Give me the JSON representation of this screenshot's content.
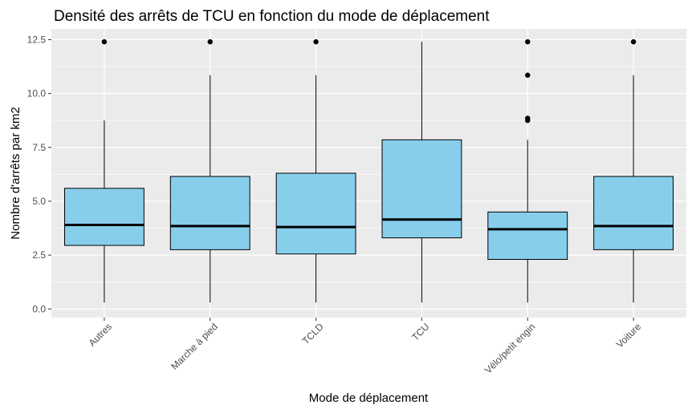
{
  "colors": {
    "panel_background": "#ebebeb",
    "grid_major": "#ffffff",
    "box_fill": "#87ceeb",
    "box_stroke": "#000000",
    "median": "#000000",
    "outlier": "#000000",
    "tick_text": "#4d4d4d"
  },
  "chart_data": {
    "type": "boxplot",
    "title": "Densité des arrêts de TCU en fonction du mode de déplacement",
    "xlabel": "Mode de déplacement",
    "ylabel": "Nombre d'arrêts par km2",
    "ylim": [
      -0.4,
      13.0
    ],
    "yticks": [
      0.0,
      2.5,
      5.0,
      7.5,
      10.0,
      12.5
    ],
    "ytick_labels": [
      "0.0",
      "2.5",
      "5.0",
      "7.5",
      "10.0",
      "12.5"
    ],
    "grid": true,
    "legend": "none",
    "categories": [
      "Autres",
      "Marche à pied",
      "TCLD",
      "TCU",
      "Vélo/petit engin",
      "Voiture"
    ],
    "boxes": [
      {
        "category": "Autres",
        "whisker_low": 0.3,
        "q1": 2.95,
        "median": 3.9,
        "q3": 5.6,
        "whisker_high": 8.75,
        "outliers": [
          12.4
        ]
      },
      {
        "category": "Marche à pied",
        "whisker_low": 0.3,
        "q1": 2.75,
        "median": 3.85,
        "q3": 6.15,
        "whisker_high": 10.85,
        "outliers": [
          12.4
        ]
      },
      {
        "category": "TCLD",
        "whisker_low": 0.3,
        "q1": 2.55,
        "median": 3.8,
        "q3": 6.3,
        "whisker_high": 10.85,
        "outliers": [
          12.4
        ]
      },
      {
        "category": "TCU",
        "whisker_low": 0.3,
        "q1": 3.3,
        "median": 4.15,
        "q3": 7.85,
        "whisker_high": 12.4,
        "outliers": []
      },
      {
        "category": "Vélo/petit engin",
        "whisker_low": 0.3,
        "q1": 2.3,
        "median": 3.7,
        "q3": 4.5,
        "whisker_high": 7.85,
        "outliers": [
          8.75,
          8.85,
          10.85,
          12.4
        ]
      },
      {
        "category": "Voiture",
        "whisker_low": 0.3,
        "q1": 2.75,
        "median": 3.85,
        "q3": 6.15,
        "whisker_high": 10.85,
        "outliers": [
          12.4
        ]
      }
    ]
  }
}
